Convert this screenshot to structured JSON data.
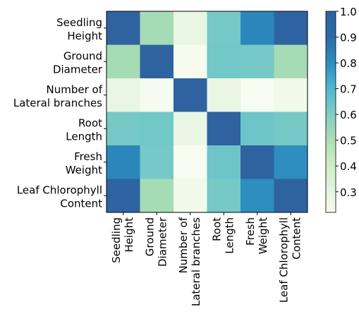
{
  "chart_data": {
    "type": "heatmap",
    "title": "",
    "xlabel": "",
    "ylabel": "",
    "row_labels": [
      [
        "Seedling",
        "Height"
      ],
      [
        "Ground",
        "Diameter"
      ],
      [
        "Number of",
        "Lateral branches"
      ],
      [
        "Root",
        "Length"
      ],
      [
        "Fresh",
        "Weight"
      ],
      [
        "Leaf Chlorophyll",
        "Content"
      ]
    ],
    "col_labels": [
      [
        "Seedling",
        "Height"
      ],
      [
        "Ground",
        "Diameter"
      ],
      [
        "Number of",
        "Lateral branches"
      ],
      [
        "Root",
        "Length"
      ],
      [
        "Fresh",
        "Weight"
      ],
      [
        "Leaf Chlorophyll",
        "Content"
      ]
    ],
    "values": [
      [
        1.0,
        0.52,
        0.28,
        0.62,
        0.82,
        0.98
      ],
      [
        0.52,
        1.0,
        0.23,
        0.63,
        0.62,
        0.52
      ],
      [
        0.28,
        0.23,
        1.0,
        0.28,
        0.22,
        0.25
      ],
      [
        0.62,
        0.63,
        0.28,
        1.0,
        0.64,
        0.62
      ],
      [
        0.82,
        0.62,
        0.22,
        0.64,
        1.0,
        0.8
      ],
      [
        0.98,
        0.52,
        0.25,
        0.62,
        0.8,
        1.0
      ]
    ],
    "colorbar": {
      "range": [
        0.22,
        1.0
      ],
      "ticks": [
        "0.3",
        "0.4",
        "0.5",
        "0.6",
        "0.7",
        "0.8",
        "0.9",
        "1.0"
      ],
      "tick_values": [
        0.3,
        0.4,
        0.5,
        0.6,
        0.7,
        0.8,
        0.9,
        1.0
      ],
      "colormap": [
        "#f7fcf0",
        "#e0f3db",
        "#ccebc5",
        "#a8ddb5",
        "#7bccc4",
        "#4eb3d3",
        "#2b8cbe",
        "#2b6aa8",
        "#2f63a0"
      ]
    }
  }
}
